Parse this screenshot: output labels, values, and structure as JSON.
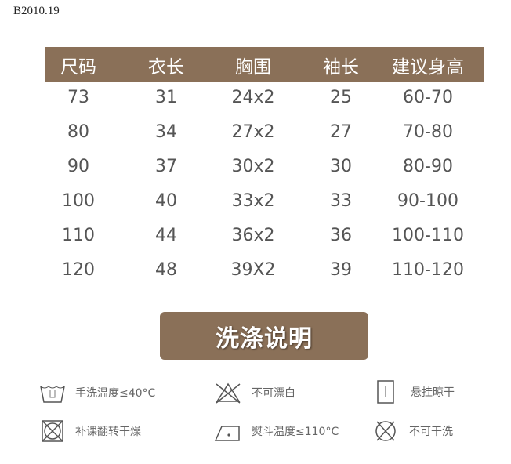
{
  "product_code": "B2010.19",
  "table": {
    "headers": [
      "尺码",
      "衣长",
      "胸围",
      "袖长",
      "建议身高"
    ],
    "rows": [
      [
        "73",
        "31",
        "24x2",
        "25",
        "60-70"
      ],
      [
        "80",
        "34",
        "27x2",
        "27",
        "70-80"
      ],
      [
        "90",
        "37",
        "30x2",
        "30",
        "80-90"
      ],
      [
        "100",
        "40",
        "33x2",
        "33",
        "90-100"
      ],
      [
        "110",
        "44",
        "36x2",
        "36",
        "100-110"
      ],
      [
        "120",
        "48",
        "39X2",
        "39",
        "110-120"
      ]
    ]
  },
  "wash_title": "洗涤说明",
  "care": [
    {
      "icon": "hand-wash-icon",
      "label": "手洗温度≤40°C"
    },
    {
      "icon": "no-bleach-icon",
      "label": "不可漂白"
    },
    {
      "icon": "hang-dry-icon",
      "label": "悬挂晾干"
    },
    {
      "icon": "no-tumble-dry-icon",
      "label": "补课翻转干燥"
    },
    {
      "icon": "iron-icon",
      "label": "熨斗温度≤110°C"
    },
    {
      "icon": "no-dry-clean-icon",
      "label": "不可干洗"
    }
  ],
  "colors": {
    "brown": "#8a7058"
  }
}
